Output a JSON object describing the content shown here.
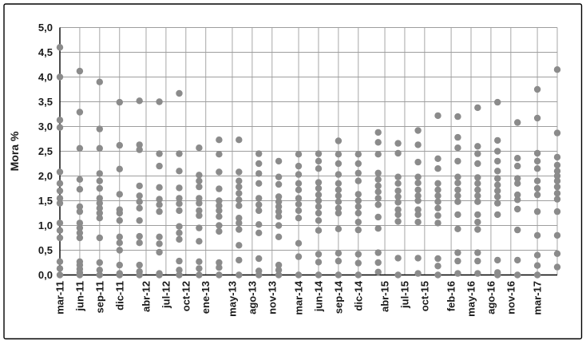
{
  "chart_data": {
    "type": "scatter",
    "title": "",
    "xlabel": "",
    "ylabel": "Mora %",
    "ylim": [
      0,
      5
    ],
    "y_tick_step": 0.5,
    "y_tick_labels_top_to_bottom": [
      "5,0",
      "4,5",
      "4,0",
      "3,5",
      "3,0",
      "2,5",
      "2,0",
      "1,5",
      "1,0",
      "0,5",
      "0,0"
    ],
    "grid": true,
    "legend": "none",
    "colors": {
      "dot": "#8b8b8b",
      "grid": "#9e9e9e",
      "axis": "#000000",
      "text": "#1a1a1a",
      "border": "#000000",
      "background": "#ffffff"
    },
    "x_axis_unit": "months since mar-11",
    "x_right_edge_month": 75,
    "x_ticks": [
      {
        "label": "mar-11",
        "month": 0
      },
      {
        "label": "jun-11",
        "month": 3
      },
      {
        "label": "sep-11",
        "month": 6
      },
      {
        "label": "dic-11",
        "month": 9
      },
      {
        "label": "abr-12",
        "month": 13
      },
      {
        "label": "jul-12",
        "month": 16
      },
      {
        "label": "oct-12",
        "month": 19
      },
      {
        "label": "ene-13",
        "month": 22
      },
      {
        "label": "may-13",
        "month": 26
      },
      {
        "label": "ago-13",
        "month": 29
      },
      {
        "label": "nov-13",
        "month": 32
      },
      {
        "label": "mar-14",
        "month": 36
      },
      {
        "label": "jun-14",
        "month": 39
      },
      {
        "label": "sep-14",
        "month": 42
      },
      {
        "label": "dic-14",
        "month": 45
      },
      {
        "label": "abr-15",
        "month": 49
      },
      {
        "label": "jul-15",
        "month": 52
      },
      {
        "label": "oct-15",
        "month": 55
      },
      {
        "label": "feb-16",
        "month": 59
      },
      {
        "label": "may-16",
        "month": 62
      },
      {
        "label": "ago-16",
        "month": 65
      },
      {
        "label": "nov-16",
        "month": 68
      },
      {
        "label": "mar-17",
        "month": 72
      }
    ],
    "series": [
      {
        "date": "mar-11",
        "month": 0,
        "values": [
          4.6,
          4.0,
          3.13,
          2.98,
          2.08,
          1.85,
          1.7,
          1.55,
          1.45,
          1.05,
          0.9,
          0.75,
          0.27,
          0.13,
          0.0
        ]
      },
      {
        "date": "jun-11",
        "month": 3,
        "values": [
          4.12,
          3.29,
          2.56,
          1.93,
          1.73,
          1.38,
          1.28,
          1.05,
          0.95,
          0.85,
          0.75,
          0.27,
          0.2,
          0.12,
          0.05,
          0.0
        ]
      },
      {
        "date": "sep-11",
        "month": 6,
        "values": [
          3.9,
          2.95,
          2.56,
          2.05,
          1.9,
          1.75,
          1.55,
          1.45,
          1.35,
          1.25,
          1.15,
          0.75,
          0.25,
          0.1,
          0.0
        ]
      },
      {
        "date": "dic-11",
        "month": 9,
        "values": [
          3.49,
          2.62,
          2.14,
          1.63,
          1.32,
          1.25,
          1.1,
          0.77,
          0.65,
          0.5,
          0.2,
          0.03,
          0.0
        ]
      },
      {
        "date": "mar-12",
        "month": 12,
        "values": [
          3.52,
          2.63,
          2.53,
          1.8,
          1.6,
          1.48,
          1.35,
          1.1,
          0.78,
          0.65,
          0.2,
          0.07,
          0.0
        ]
      },
      {
        "date": "jun-12",
        "month": 15,
        "values": [
          3.5,
          2.45,
          2.2,
          1.77,
          1.53,
          1.42,
          1.28,
          0.77,
          0.63,
          0.46,
          0.03,
          0.0
        ]
      },
      {
        "date": "sep-12",
        "month": 18,
        "values": [
          3.67,
          2.45,
          2.1,
          1.76,
          1.55,
          1.44,
          1.3,
          0.98,
          0.85,
          0.72,
          0.28,
          0.1,
          0.0
        ]
      },
      {
        "date": "dic-12",
        "month": 21,
        "values": [
          2.57,
          2.02,
          1.9,
          1.78,
          1.55,
          1.45,
          1.3,
          1.2,
          0.95,
          0.68,
          0.27,
          0.13,
          0.0
        ]
      },
      {
        "date": "mar-13",
        "month": 24,
        "values": [
          2.73,
          2.44,
          2.08,
          1.74,
          1.5,
          1.4,
          1.3,
          1.18,
          1.0,
          0.88,
          0.25,
          0.15,
          0.0
        ]
      },
      {
        "date": "jun-13",
        "month": 27,
        "values": [
          2.73,
          2.08,
          1.9,
          1.78,
          1.65,
          1.52,
          1.4,
          1.15,
          1.05,
          0.92,
          0.6,
          0.3,
          0.0
        ]
      },
      {
        "date": "sep-13",
        "month": 30,
        "values": [
          2.45,
          2.25,
          2.05,
          1.85,
          1.55,
          1.42,
          1.3,
          1.02,
          0.85,
          0.33,
          0.08,
          0.0
        ]
      },
      {
        "date": "dic-13",
        "month": 33,
        "values": [
          2.3,
          1.98,
          1.83,
          1.58,
          1.48,
          1.38,
          1.28,
          1.18,
          1.0,
          0.77,
          0.2,
          0.1,
          0.0
        ]
      },
      {
        "date": "mar-14",
        "month": 36,
        "values": [
          2.44,
          2.2,
          2.03,
          1.85,
          1.72,
          1.55,
          1.43,
          1.3,
          1.15,
          0.64,
          0.37,
          0.0
        ]
      },
      {
        "date": "jun-14",
        "month": 39,
        "values": [
          2.45,
          2.3,
          2.15,
          1.87,
          1.75,
          1.62,
          1.5,
          1.38,
          1.25,
          1.1,
          0.9,
          0.42,
          0.26,
          0.0
        ]
      },
      {
        "date": "sep-14",
        "month": 42,
        "values": [
          2.71,
          2.44,
          2.25,
          2.03,
          1.85,
          1.72,
          1.6,
          1.48,
          1.35,
          1.25,
          0.93,
          0.44,
          0.28,
          0.0
        ]
      },
      {
        "date": "dic-14",
        "month": 45,
        "values": [
          2.44,
          2.25,
          2.06,
          1.9,
          1.63,
          1.5,
          1.38,
          1.25,
          1.07,
          0.91,
          0.42,
          0.24,
          0.0
        ]
      },
      {
        "date": "mar-15",
        "month": 48,
        "values": [
          2.88,
          2.68,
          2.44,
          2.06,
          1.93,
          1.8,
          1.68,
          1.55,
          1.42,
          1.17,
          0.94,
          0.45,
          0.25,
          0.06
        ]
      },
      {
        "date": "jun-15",
        "month": 51,
        "values": [
          2.66,
          2.46,
          1.98,
          1.85,
          1.7,
          1.58,
          1.47,
          1.32,
          1.22,
          1.08,
          0.34,
          0.0
        ]
      },
      {
        "date": "sep-15",
        "month": 54,
        "values": [
          2.92,
          2.63,
          2.28,
          1.98,
          1.86,
          1.72,
          1.6,
          1.5,
          1.32,
          1.22,
          1.07,
          0.34,
          0.03
        ]
      },
      {
        "date": "dic-15",
        "month": 57,
        "values": [
          3.22,
          2.35,
          2.15,
          1.85,
          1.72,
          1.6,
          1.48,
          1.35,
          1.2,
          1.05,
          0.33,
          0.18,
          0.0
        ]
      },
      {
        "date": "mar-16",
        "month": 60,
        "values": [
          3.2,
          2.78,
          2.57,
          2.3,
          1.98,
          1.86,
          1.72,
          1.6,
          1.48,
          1.22,
          0.93,
          0.45,
          0.28,
          0.03
        ]
      },
      {
        "date": "jun-16",
        "month": 63,
        "values": [
          3.38,
          2.6,
          2.45,
          2.25,
          1.97,
          1.85,
          1.72,
          1.6,
          1.48,
          1.22,
          1.07,
          0.92,
          0.45,
          0.28,
          0.03
        ]
      },
      {
        "date": "sep-16",
        "month": 66,
        "values": [
          3.49,
          2.72,
          2.5,
          2.3,
          2.1,
          1.95,
          1.82,
          1.7,
          1.58,
          1.45,
          1.22,
          0.3,
          0.05,
          0.0
        ]
      },
      {
        "date": "dic-16",
        "month": 69,
        "values": [
          3.08,
          2.36,
          2.2,
          1.95,
          1.85,
          1.62,
          1.52,
          1.33,
          0.91,
          0.3,
          0.0
        ]
      },
      {
        "date": "mar-17",
        "month": 72,
        "values": [
          3.75,
          3.17,
          2.46,
          2.3,
          2.15,
          1.9,
          1.75,
          1.62,
          1.28,
          0.8,
          0.4,
          0.19,
          0.0
        ]
      },
      {
        "date": "jun-17",
        "month": 75,
        "values": [
          4.15,
          2.87,
          2.38,
          2.22,
          2.1,
          2.0,
          1.9,
          1.78,
          1.65,
          1.53,
          1.28,
          0.8,
          0.43,
          0.16
        ]
      }
    ]
  }
}
